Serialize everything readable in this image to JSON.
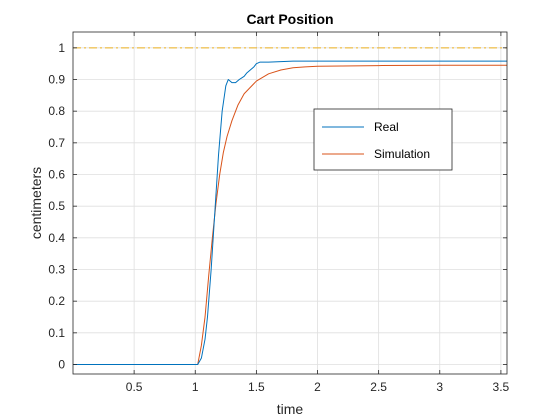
{
  "chart_data": {
    "type": "line",
    "title": "Cart Position",
    "xlabel": "time",
    "ylabel": "centimeters",
    "xlim": [
      0,
      3.55
    ],
    "ylim": [
      -0.03,
      1.05
    ],
    "xticks": [
      0.5,
      1,
      1.5,
      2,
      2.5,
      3,
      3.5
    ],
    "xtick_labels": [
      "0.5",
      "1",
      "1.5",
      "2",
      "2.5",
      "3",
      "3.5"
    ],
    "yticks": [
      0,
      0.1,
      0.2,
      0.3,
      0.4,
      0.5,
      0.6,
      0.7,
      0.8,
      0.9,
      1
    ],
    "ytick_labels": [
      "0",
      "0.1",
      "0.2",
      "0.3",
      "0.4",
      "0.5",
      "0.6",
      "0.7",
      "0.8",
      "0.9",
      "1"
    ],
    "grid": true,
    "legend_position": "right-center",
    "series": [
      {
        "name": "Real",
        "color": "#0072BD",
        "x": [
          0,
          1.02,
          1.05,
          1.08,
          1.1,
          1.13,
          1.16,
          1.19,
          1.22,
          1.25,
          1.27,
          1.3,
          1.33,
          1.36,
          1.38,
          1.4,
          1.42,
          1.45,
          1.48,
          1.5,
          1.53,
          1.6,
          1.8,
          2.0,
          2.5,
          3.0,
          3.55
        ],
        "y": [
          0,
          0,
          0.02,
          0.08,
          0.15,
          0.3,
          0.48,
          0.66,
          0.8,
          0.88,
          0.9,
          0.89,
          0.89,
          0.9,
          0.905,
          0.91,
          0.92,
          0.93,
          0.94,
          0.95,
          0.955,
          0.955,
          0.958,
          0.958,
          0.958,
          0.958,
          0.958
        ]
      },
      {
        "name": "Simulation",
        "color": "#D95319",
        "x": [
          0,
          1.02,
          1.05,
          1.08,
          1.11,
          1.14,
          1.17,
          1.2,
          1.23,
          1.26,
          1.3,
          1.35,
          1.4,
          1.5,
          1.6,
          1.7,
          1.8,
          1.9,
          2.0,
          2.5,
          3.0,
          3.55
        ],
        "y": [
          0,
          0,
          0.06,
          0.15,
          0.28,
          0.4,
          0.51,
          0.6,
          0.67,
          0.72,
          0.77,
          0.82,
          0.855,
          0.895,
          0.918,
          0.93,
          0.937,
          0.94,
          0.942,
          0.944,
          0.945,
          0.945
        ]
      },
      {
        "name": "",
        "color": "#EDB120",
        "style": "dash-dot",
        "x": [
          0,
          3.55
        ],
        "y": [
          1,
          1
        ]
      }
    ]
  }
}
